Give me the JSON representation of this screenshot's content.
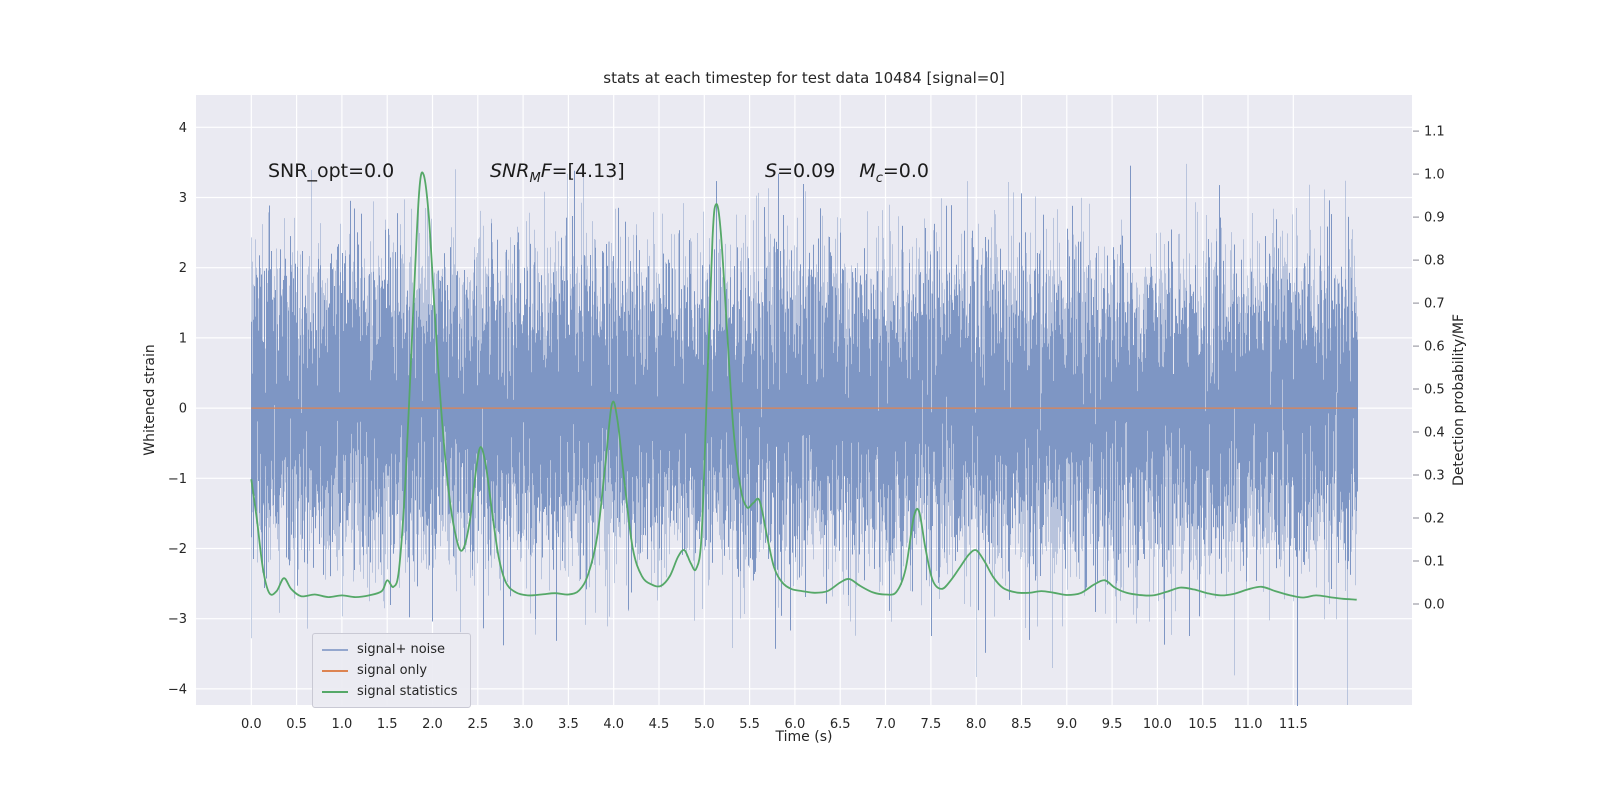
{
  "figure": {
    "background": "#ffffff",
    "plot_background": "#eaeaf2",
    "grid_color": "#ffffff",
    "tick_color": "#262626"
  },
  "chart_data": {
    "type": "line",
    "title": "stats at each timestep for test data 10484 [signal=0]",
    "xlabel": "Time (s)",
    "ylabel_left": "Whitened strain",
    "ylabel_right": "Detection probability/MF",
    "xlim": [
      -0.61,
      12.81
    ],
    "ylim_left": [
      -4.23,
      4.46
    ],
    "ylim_right": [
      -0.235,
      1.184
    ],
    "grid": true,
    "legend_position": "lower left",
    "x_tick_values": [
      0.0,
      0.5,
      1.0,
      1.5,
      2.0,
      2.5,
      3.0,
      3.5,
      4.0,
      4.5,
      5.0,
      5.5,
      6.0,
      6.5,
      7.0,
      7.5,
      8.0,
      8.5,
      9.0,
      9.5,
      10.0,
      10.5,
      11.0,
      11.5
    ],
    "x_tick_labels": [
      "0.0",
      "0.5",
      "1.0",
      "1.5",
      "2.0",
      "2.5",
      "3.0",
      "3.5",
      "4.0",
      "4.5",
      "5.0",
      "5.5",
      "6.0",
      "6.5",
      "7.0",
      "7.5",
      "8.0",
      "8.5",
      "9.0",
      "9.5",
      "10.0",
      "10.5",
      "11.0",
      "11.5"
    ],
    "y_left_tick_values": [
      4,
      3,
      2,
      1,
      0,
      -1,
      -2,
      -3,
      -4
    ],
    "y_left_tick_labels": [
      "4",
      "3",
      "2",
      "1",
      "0",
      "−1",
      "−2",
      "−3",
      "−4"
    ],
    "y_right_tick_values": [
      1.1,
      1.0,
      0.9,
      0.8,
      0.7,
      0.6,
      0.5,
      0.4,
      0.3,
      0.2,
      0.1,
      0.0
    ],
    "y_right_tick_labels": [
      "1.1",
      "1.0",
      "0.9",
      "0.8",
      "0.7",
      "0.6",
      "0.5",
      "0.4",
      "0.3",
      "0.2",
      "0.1",
      "0.0"
    ],
    "series": [
      {
        "name": "signal+ noise",
        "type": "noise_band",
        "axis": "left",
        "color": "#7e96c4",
        "tip_alpha": 0.45,
        "t_start": 0.0,
        "t_end": 12.2,
        "mean": 0.0,
        "std": 1.0,
        "seed": 42,
        "samples_per_column": 22,
        "core_samples": 7
      },
      {
        "name": "signal only",
        "type": "constant",
        "axis": "left",
        "color": "#dd8452",
        "value": 0.0,
        "t_start": 0.0,
        "t_end": 12.2
      },
      {
        "name": "signal statistics",
        "type": "curve",
        "axis": "right",
        "color": "#55a868",
        "points": [
          [
            0.0,
            0.29
          ],
          [
            0.06,
            0.2
          ],
          [
            0.13,
            0.08
          ],
          [
            0.2,
            0.025
          ],
          [
            0.28,
            0.03
          ],
          [
            0.36,
            0.06
          ],
          [
            0.44,
            0.035
          ],
          [
            0.55,
            0.018
          ],
          [
            0.7,
            0.022
          ],
          [
            0.85,
            0.016
          ],
          [
            1.0,
            0.02
          ],
          [
            1.15,
            0.016
          ],
          [
            1.3,
            0.02
          ],
          [
            1.44,
            0.03
          ],
          [
            1.5,
            0.055
          ],
          [
            1.57,
            0.04
          ],
          [
            1.63,
            0.08
          ],
          [
            1.7,
            0.28
          ],
          [
            1.78,
            0.65
          ],
          [
            1.85,
            0.95
          ],
          [
            1.9,
            1.0
          ],
          [
            1.96,
            0.9
          ],
          [
            2.03,
            0.66
          ],
          [
            2.1,
            0.44
          ],
          [
            2.18,
            0.26
          ],
          [
            2.26,
            0.155
          ],
          [
            2.33,
            0.125
          ],
          [
            2.41,
            0.19
          ],
          [
            2.48,
            0.31
          ],
          [
            2.53,
            0.365
          ],
          [
            2.59,
            0.32
          ],
          [
            2.66,
            0.21
          ],
          [
            2.73,
            0.11
          ],
          [
            2.81,
            0.05
          ],
          [
            2.92,
            0.027
          ],
          [
            3.05,
            0.02
          ],
          [
            3.2,
            0.022
          ],
          [
            3.35,
            0.025
          ],
          [
            3.5,
            0.022
          ],
          [
            3.62,
            0.032
          ],
          [
            3.72,
            0.07
          ],
          [
            3.82,
            0.16
          ],
          [
            3.91,
            0.33
          ],
          [
            3.98,
            0.465
          ],
          [
            4.04,
            0.43
          ],
          [
            4.12,
            0.28
          ],
          [
            4.21,
            0.13
          ],
          [
            4.31,
            0.065
          ],
          [
            4.42,
            0.045
          ],
          [
            4.52,
            0.042
          ],
          [
            4.62,
            0.065
          ],
          [
            4.71,
            0.11
          ],
          [
            4.78,
            0.125
          ],
          [
            4.85,
            0.095
          ],
          [
            4.91,
            0.082
          ],
          [
            4.97,
            0.16
          ],
          [
            5.03,
            0.5
          ],
          [
            5.09,
            0.85
          ],
          [
            5.13,
            0.93
          ],
          [
            5.18,
            0.87
          ],
          [
            5.25,
            0.64
          ],
          [
            5.32,
            0.41
          ],
          [
            5.4,
            0.27
          ],
          [
            5.47,
            0.225
          ],
          [
            5.54,
            0.235
          ],
          [
            5.61,
            0.24
          ],
          [
            5.69,
            0.16
          ],
          [
            5.77,
            0.085
          ],
          [
            5.86,
            0.05
          ],
          [
            5.96,
            0.035
          ],
          [
            6.08,
            0.03
          ],
          [
            6.22,
            0.026
          ],
          [
            6.36,
            0.03
          ],
          [
            6.5,
            0.05
          ],
          [
            6.6,
            0.058
          ],
          [
            6.72,
            0.042
          ],
          [
            6.86,
            0.027
          ],
          [
            7.0,
            0.022
          ],
          [
            7.12,
            0.028
          ],
          [
            7.22,
            0.08
          ],
          [
            7.31,
            0.2
          ],
          [
            7.37,
            0.215
          ],
          [
            7.44,
            0.13
          ],
          [
            7.52,
            0.055
          ],
          [
            7.62,
            0.035
          ],
          [
            7.72,
            0.055
          ],
          [
            7.82,
            0.085
          ],
          [
            7.92,
            0.115
          ],
          [
            8.0,
            0.125
          ],
          [
            8.09,
            0.1
          ],
          [
            8.19,
            0.062
          ],
          [
            8.3,
            0.037
          ],
          [
            8.44,
            0.027
          ],
          [
            8.58,
            0.026
          ],
          [
            8.72,
            0.03
          ],
          [
            8.86,
            0.026
          ],
          [
            9.0,
            0.021
          ],
          [
            9.15,
            0.025
          ],
          [
            9.3,
            0.045
          ],
          [
            9.42,
            0.055
          ],
          [
            9.53,
            0.038
          ],
          [
            9.66,
            0.026
          ],
          [
            9.8,
            0.021
          ],
          [
            9.95,
            0.02
          ],
          [
            10.1,
            0.028
          ],
          [
            10.25,
            0.038
          ],
          [
            10.4,
            0.034
          ],
          [
            10.55,
            0.025
          ],
          [
            10.7,
            0.02
          ],
          [
            10.85,
            0.024
          ],
          [
            11.0,
            0.034
          ],
          [
            11.15,
            0.04
          ],
          [
            11.3,
            0.03
          ],
          [
            11.45,
            0.021
          ],
          [
            11.6,
            0.015
          ],
          [
            11.75,
            0.02
          ],
          [
            11.9,
            0.016
          ],
          [
            12.05,
            0.012
          ],
          [
            12.2,
            0.01
          ]
        ]
      }
    ],
    "legend": {
      "items": [
        "signal+ noise",
        "signal only",
        "signal statistics"
      ]
    }
  },
  "annotations": {
    "snr_opt": "SNR_opt=0.0",
    "snr_mf": {
      "var_a": "SNR",
      "sub_a": "M",
      "var_b": "F",
      "eq": "=[4.13]"
    },
    "s": {
      "var": "S",
      "eq": "=0.09"
    },
    "mc": {
      "var": "M",
      "sub": "c",
      "eq": "=0.0"
    }
  }
}
